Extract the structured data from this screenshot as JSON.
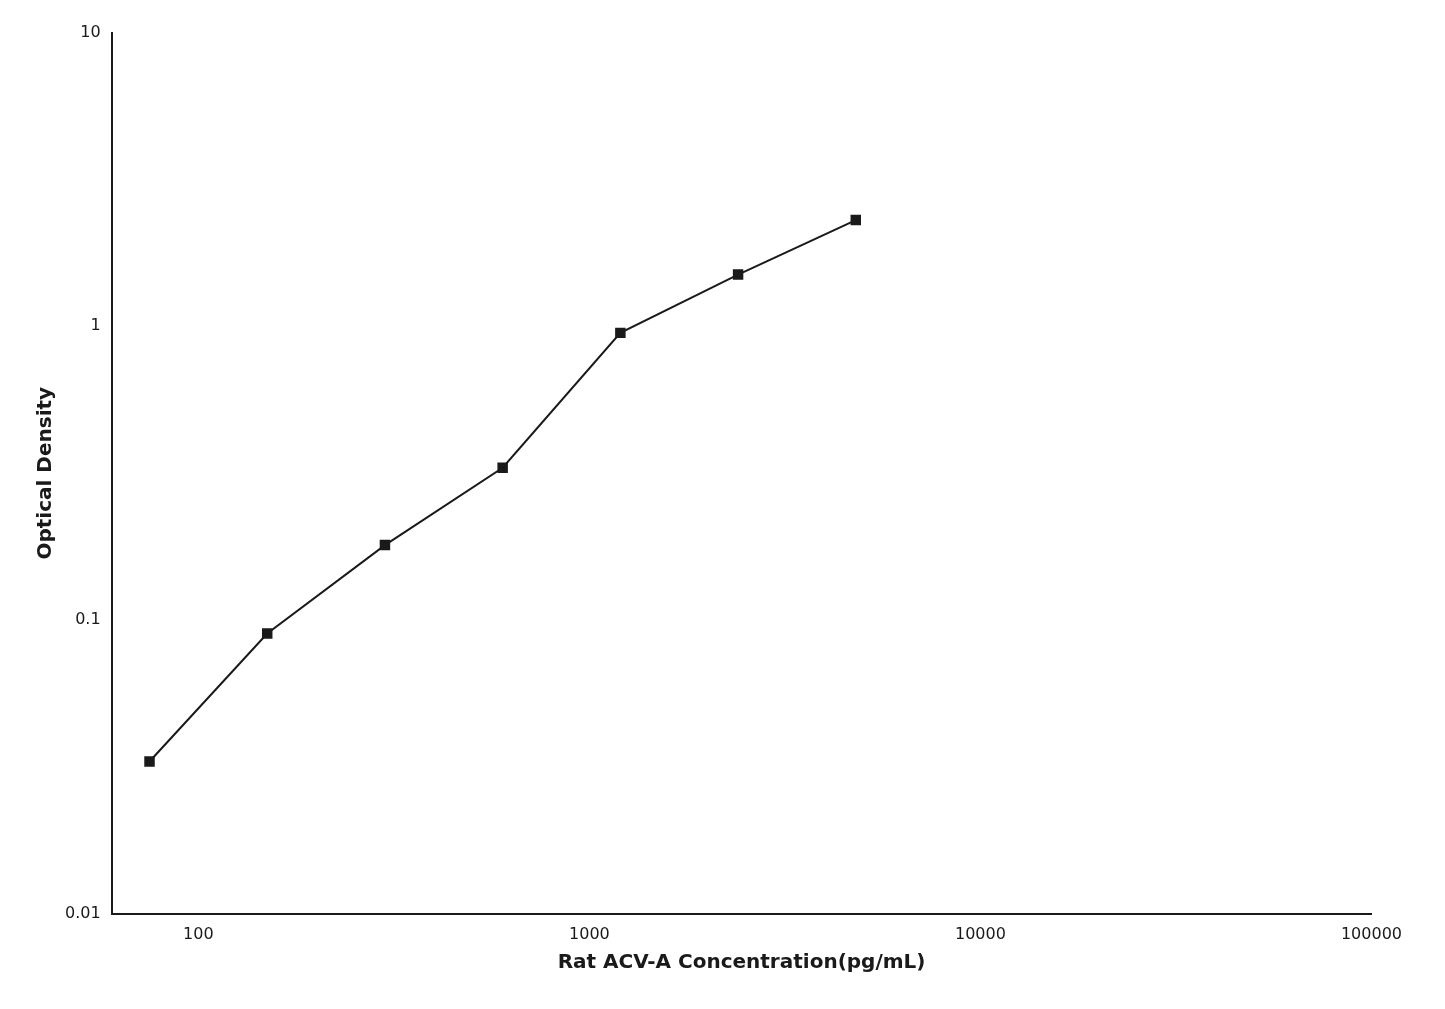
{
  "chart_data": {
    "type": "line",
    "x": [
      75,
      150,
      300,
      600,
      1200,
      2400,
      4800
    ],
    "values": [
      0.033,
      0.09,
      0.18,
      0.33,
      0.95,
      1.5,
      2.3
    ],
    "xlabel": "Rat ACV-A Concentration(pg/mL)",
    "ylabel": "Optical Density",
    "xlim": [
      60,
      100000
    ],
    "ylim": [
      0.01,
      10
    ],
    "xticks": [
      100,
      1000,
      10000,
      100000
    ],
    "yticks": [
      0.01,
      0.1,
      1,
      10
    ],
    "log": true,
    "grid": false,
    "color": "#1a1a1a",
    "marker": "square"
  }
}
